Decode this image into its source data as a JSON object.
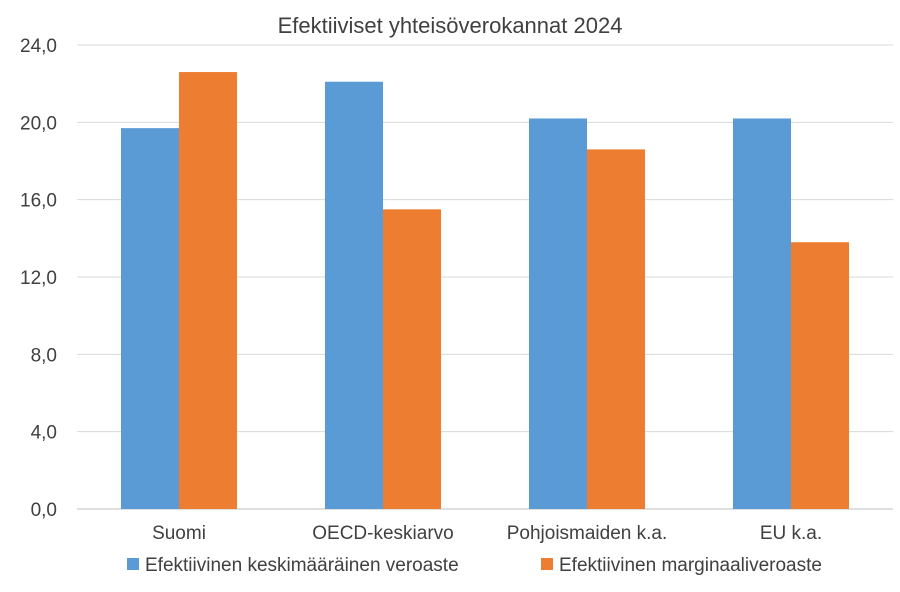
{
  "chart_data": {
    "type": "bar",
    "title": "Efektiiviset yhteisöverokannat 2024",
    "xlabel": "",
    "ylabel": "",
    "ylim": [
      0,
      24
    ],
    "yticks": [
      "0,0",
      "4,0",
      "8,0",
      "12,0",
      "16,0",
      "20,0",
      "24,0"
    ],
    "grid": true,
    "legend_position": "bottom",
    "categories": [
      "Suomi",
      "OECD-keskiarvo",
      "Pohjoismaiden k.a.",
      "EU k.a."
    ],
    "series": [
      {
        "name": "Efektiivinen keskimääräinen veroaste",
        "color": "#5B9BD5",
        "values": [
          19.7,
          22.1,
          20.2,
          20.2
        ]
      },
      {
        "name": "Efektiivinen marginaaliveroaste",
        "color": "#ED7D31",
        "values": [
          22.6,
          15.5,
          18.6,
          13.8
        ]
      }
    ]
  }
}
